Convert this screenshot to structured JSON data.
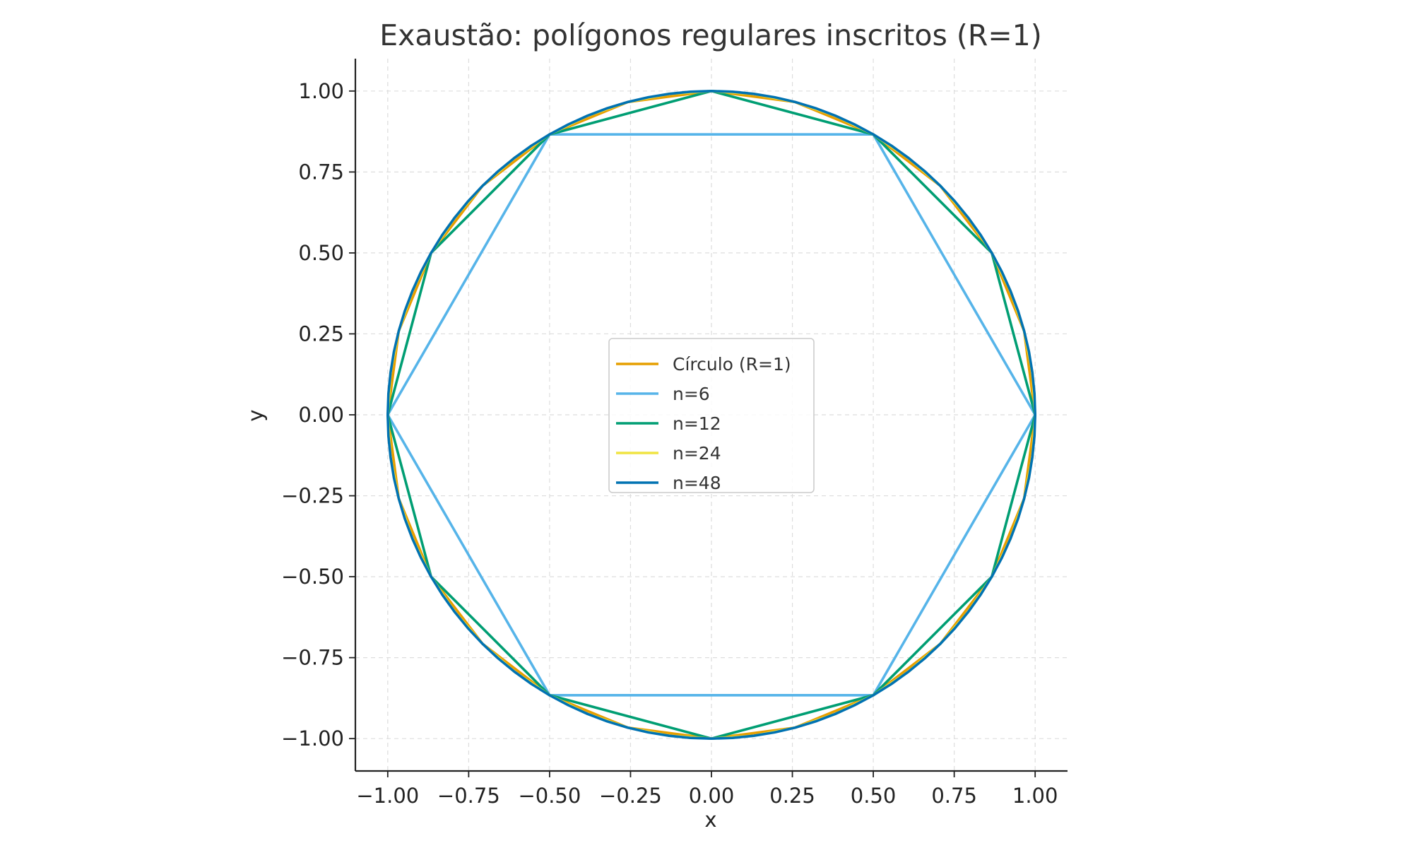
{
  "chart_data": {
    "type": "line",
    "title": "Exaustão: polígonos regulares inscritos (R=1)",
    "xlabel": "x",
    "ylabel": "y",
    "xlim": [
      -1.1,
      1.1
    ],
    "ylim": [
      -1.1,
      1.1
    ],
    "xticks": [
      -1.0,
      -0.75,
      -0.5,
      -0.25,
      0.0,
      0.25,
      0.5,
      0.75,
      1.0
    ],
    "yticks": [
      -1.0,
      -0.75,
      -0.5,
      -0.25,
      0.0,
      0.25,
      0.5,
      0.75,
      1.0
    ],
    "xtick_labels": [
      "−1.00",
      "−0.75",
      "−0.50",
      "−0.25",
      "0.00",
      "0.25",
      "0.50",
      "0.75",
      "1.00"
    ],
    "ytick_labels": [
      "−1.00",
      "−0.75",
      "−0.50",
      "−0.25",
      "0.00",
      "0.25",
      "0.50",
      "0.75",
      "1.00"
    ],
    "grid": true,
    "legend_position": "center",
    "series": [
      {
        "name": "Círculo (R=1)",
        "color": "#e69f00",
        "x": [
          1.0,
          0.9659,
          0.866,
          0.7071,
          0.5,
          0.2588,
          0.0,
          -0.2588,
          -0.5,
          -0.7071,
          -0.866,
          -0.9659,
          -1.0,
          -0.9659,
          -0.866,
          -0.7071,
          -0.5,
          -0.2588,
          0.0,
          0.2588,
          0.5,
          0.7071,
          0.866,
          0.9659,
          1.0
        ],
        "y": [
          0.0,
          0.2588,
          0.5,
          0.7071,
          0.866,
          0.9659,
          1.0,
          0.9659,
          0.866,
          0.7071,
          0.5,
          0.2588,
          0.0,
          -0.2588,
          -0.5,
          -0.7071,
          -0.866,
          -0.9659,
          -1.0,
          -0.9659,
          -0.866,
          -0.7071,
          -0.5,
          -0.2588,
          0.0
        ]
      },
      {
        "name": "n=6",
        "color": "#56b4e9",
        "x": [
          1.0,
          0.5,
          -0.5,
          -1.0,
          -0.5,
          0.5,
          1.0
        ],
        "y": [
          0.0,
          0.866,
          0.866,
          0.0,
          -0.866,
          -0.866,
          0.0
        ]
      },
      {
        "name": "n=12",
        "color": "#009e73",
        "x": [
          1.0,
          0.866,
          0.5,
          0.0,
          -0.5,
          -0.866,
          -1.0,
          -0.866,
          -0.5,
          0.0,
          0.5,
          0.866,
          1.0
        ],
        "y": [
          0.0,
          0.5,
          0.866,
          1.0,
          0.866,
          0.5,
          0.0,
          -0.5,
          -0.866,
          -1.0,
          -0.866,
          -0.5,
          0.0
        ]
      },
      {
        "name": "n=24",
        "color": "#f0e442",
        "x": [
          1.0,
          0.9914,
          0.9659,
          0.9239,
          0.866,
          0.7934,
          0.7071,
          0.6088,
          0.5,
          0.3827,
          0.2588,
          0.1305,
          0.0,
          -0.1305,
          -0.2588,
          -0.3827,
          -0.5,
          -0.6088,
          -0.7071,
          -0.7934,
          -0.866,
          -0.9239,
          -0.9659,
          -0.9914,
          -1.0
        ],
        "y": [
          0.0,
          0.1305,
          0.2588,
          0.3827,
          0.5,
          0.6088,
          0.7071,
          0.7934,
          0.866,
          0.9239,
          0.9659,
          0.9914,
          1.0,
          0.9914,
          0.9659,
          0.9239,
          0.866,
          0.7934,
          0.7071,
          0.6088,
          0.5,
          0.3827,
          0.2588,
          0.1305,
          0.0
        ],
        "x_lower": [
          -1.0,
          -0.9914,
          -0.9659,
          -0.9239,
          -0.866,
          -0.7934,
          -0.7071,
          -0.6088,
          -0.5,
          -0.3827,
          -0.2588,
          -0.1305,
          0.0,
          0.1305,
          0.2588,
          0.3827,
          0.5,
          0.6088,
          0.7071,
          0.7934,
          0.866,
          0.9239,
          0.9659,
          0.9914,
          1.0
        ],
        "y_lower": [
          0.0,
          -0.1305,
          -0.2588,
          -0.3827,
          -0.5,
          -0.6088,
          -0.7071,
          -0.7934,
          -0.866,
          -0.9239,
          -0.9659,
          -0.9914,
          -1.0,
          -0.9914,
          -0.9659,
          -0.9239,
          -0.866,
          -0.7934,
          -0.7071,
          -0.6088,
          -0.5,
          -0.3827,
          -0.2588,
          -0.1305,
          0.0
        ]
      },
      {
        "name": "n=48",
        "color": "#0072b2",
        "x": [
          1.0,
          0.9979,
          0.9914,
          0.9808,
          0.9659,
          0.9469,
          0.9239,
          0.8969,
          0.866,
          0.8315,
          0.7934,
          0.7518,
          0.7071,
          0.6593,
          0.6088,
          0.5556,
          0.5,
          0.4423,
          0.3827,
          0.3214,
          0.2588,
          0.1951,
          0.1305,
          0.0654,
          0.0,
          -0.0654,
          -0.1305,
          -0.1951,
          -0.2588,
          -0.3214,
          -0.3827,
          -0.4423,
          -0.5,
          -0.5556,
          -0.6088,
          -0.6593,
          -0.7071,
          -0.7518,
          -0.7934,
          -0.8315,
          -0.866,
          -0.8969,
          -0.9239,
          -0.9469,
          -0.9659,
          -0.9808,
          -0.9914,
          -0.9979,
          -1.0
        ],
        "y": [
          0.0,
          0.0654,
          0.1305,
          0.1951,
          0.2588,
          0.3214,
          0.3827,
          0.4423,
          0.5,
          0.5556,
          0.6088,
          0.6593,
          0.7071,
          0.7518,
          0.7934,
          0.8315,
          0.866,
          0.8969,
          0.9239,
          0.9469,
          0.9659,
          0.9808,
          0.9914,
          0.9979,
          1.0,
          0.9979,
          0.9914,
          0.9808,
          0.9659,
          0.9469,
          0.9239,
          0.8969,
          0.866,
          0.8315,
          0.7934,
          0.7518,
          0.7071,
          0.6593,
          0.6088,
          0.5556,
          0.5,
          0.4423,
          0.3827,
          0.3214,
          0.2588,
          0.1951,
          0.1305,
          0.0654,
          0.0
        ],
        "x_lower": [
          -1.0,
          -0.9979,
          -0.9914,
          -0.9808,
          -0.9659,
          -0.9469,
          -0.9239,
          -0.8969,
          -0.866,
          -0.8315,
          -0.7934,
          -0.7518,
          -0.7071,
          -0.6593,
          -0.6088,
          -0.5556,
          -0.5,
          -0.4423,
          -0.3827,
          -0.3214,
          -0.2588,
          -0.1951,
          -0.1305,
          -0.0654,
          0.0,
          0.0654,
          0.1305,
          0.1951,
          0.2588,
          0.3214,
          0.3827,
          0.4423,
          0.5,
          0.5556,
          0.6088,
          0.6593,
          0.7071,
          0.7518,
          0.7934,
          0.8315,
          0.866,
          0.8969,
          0.9239,
          0.9469,
          0.9659,
          0.9808,
          0.9914,
          0.9979,
          1.0
        ],
        "y_lower": [
          0.0,
          -0.0654,
          -0.1305,
          -0.1951,
          -0.2588,
          -0.3214,
          -0.3827,
          -0.4423,
          -0.5,
          -0.5556,
          -0.6088,
          -0.6593,
          -0.7071,
          -0.7518,
          -0.7934,
          -0.8315,
          -0.866,
          -0.8969,
          -0.9239,
          -0.9469,
          -0.9659,
          -0.9808,
          -0.9914,
          -0.9979,
          -1.0,
          -0.9979,
          -0.9914,
          -0.9808,
          -0.9659,
          -0.9469,
          -0.9239,
          -0.8969,
          -0.866,
          -0.8315,
          -0.7934,
          -0.7518,
          -0.7071,
          -0.6593,
          -0.6088,
          -0.5556,
          -0.5,
          -0.4423,
          -0.3827,
          -0.3214,
          -0.2588,
          -0.1951,
          -0.1305,
          -0.0654,
          0.0
        ]
      }
    ]
  }
}
